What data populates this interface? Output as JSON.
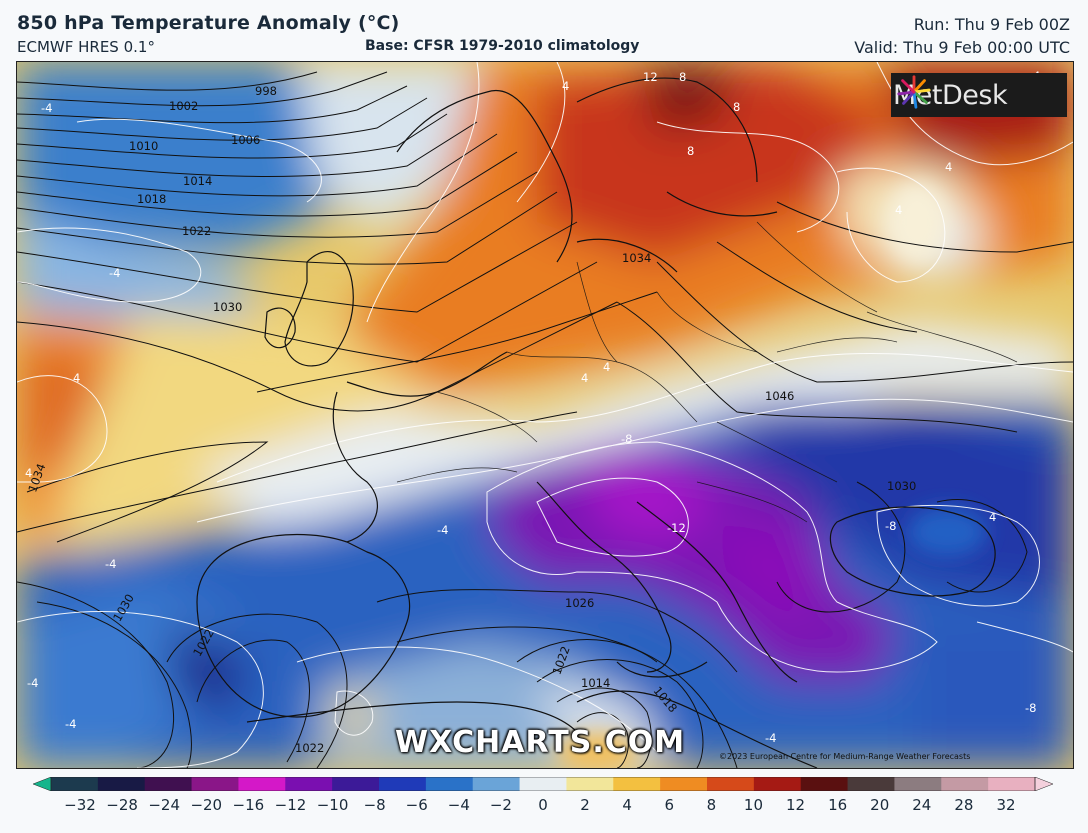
{
  "header": {
    "title": "850 hPa Temperature Anomaly (°C)",
    "model": "ECMWF HRES 0.1°",
    "base": "Base: CFSR 1979-2010 climatology",
    "run": "Run: Thu 9 Feb 00Z",
    "valid": "Valid: Thu 9 Feb 00:00 UTC"
  },
  "logo": {
    "text": "MetDesk",
    "icon": "metdesk-burst-icon"
  },
  "watermark": "WXCHARTS.COM",
  "copyright": "©2023 European Centre for Medium-Range Weather Forecasts",
  "map": {
    "pressure_labels": [
      "998",
      "1002",
      "1006",
      "1010",
      "1014",
      "1018",
      "1022",
      "1030",
      "1034",
      "1034",
      "1046",
      "1030",
      "1030",
      "1022",
      "1026",
      "1022",
      "1014",
      "1018",
      "1022"
    ],
    "temperature_labels": [
      "-4",
      "4",
      "-4",
      "4",
      "12",
      "8",
      "8",
      "8",
      "4",
      "4",
      "4",
      "4",
      "4",
      "-8",
      "-12",
      "-8",
      "4",
      "-4",
      "-4",
      "-4",
      "-4",
      "-4",
      "-8",
      "4"
    ]
  },
  "legend": {
    "ticks": [
      "−32",
      "−28",
      "−24",
      "−20",
      "−16",
      "−12",
      "−10",
      "−8",
      "−6",
      "−4",
      "−2",
      "0",
      "2",
      "4",
      "6",
      "8",
      "10",
      "12",
      "16",
      "20",
      "24",
      "28",
      "32"
    ],
    "colors": [
      "#15b58c",
      "#1c3a4e",
      "#181a45",
      "#401050",
      "#8a1688",
      "#d418c8",
      "#7a0fb0",
      "#3c1a98",
      "#1f3ab8",
      "#2a72c8",
      "#6aa4d8",
      "#e8eef2",
      "#f2e69a",
      "#f3c040",
      "#ef8c22",
      "#d64a1a",
      "#a51a14",
      "#5a1010",
      "#4a3a3a",
      "#8c7c80",
      "#c49aa4",
      "#e8b0c0",
      "#f4d0dc"
    ]
  }
}
